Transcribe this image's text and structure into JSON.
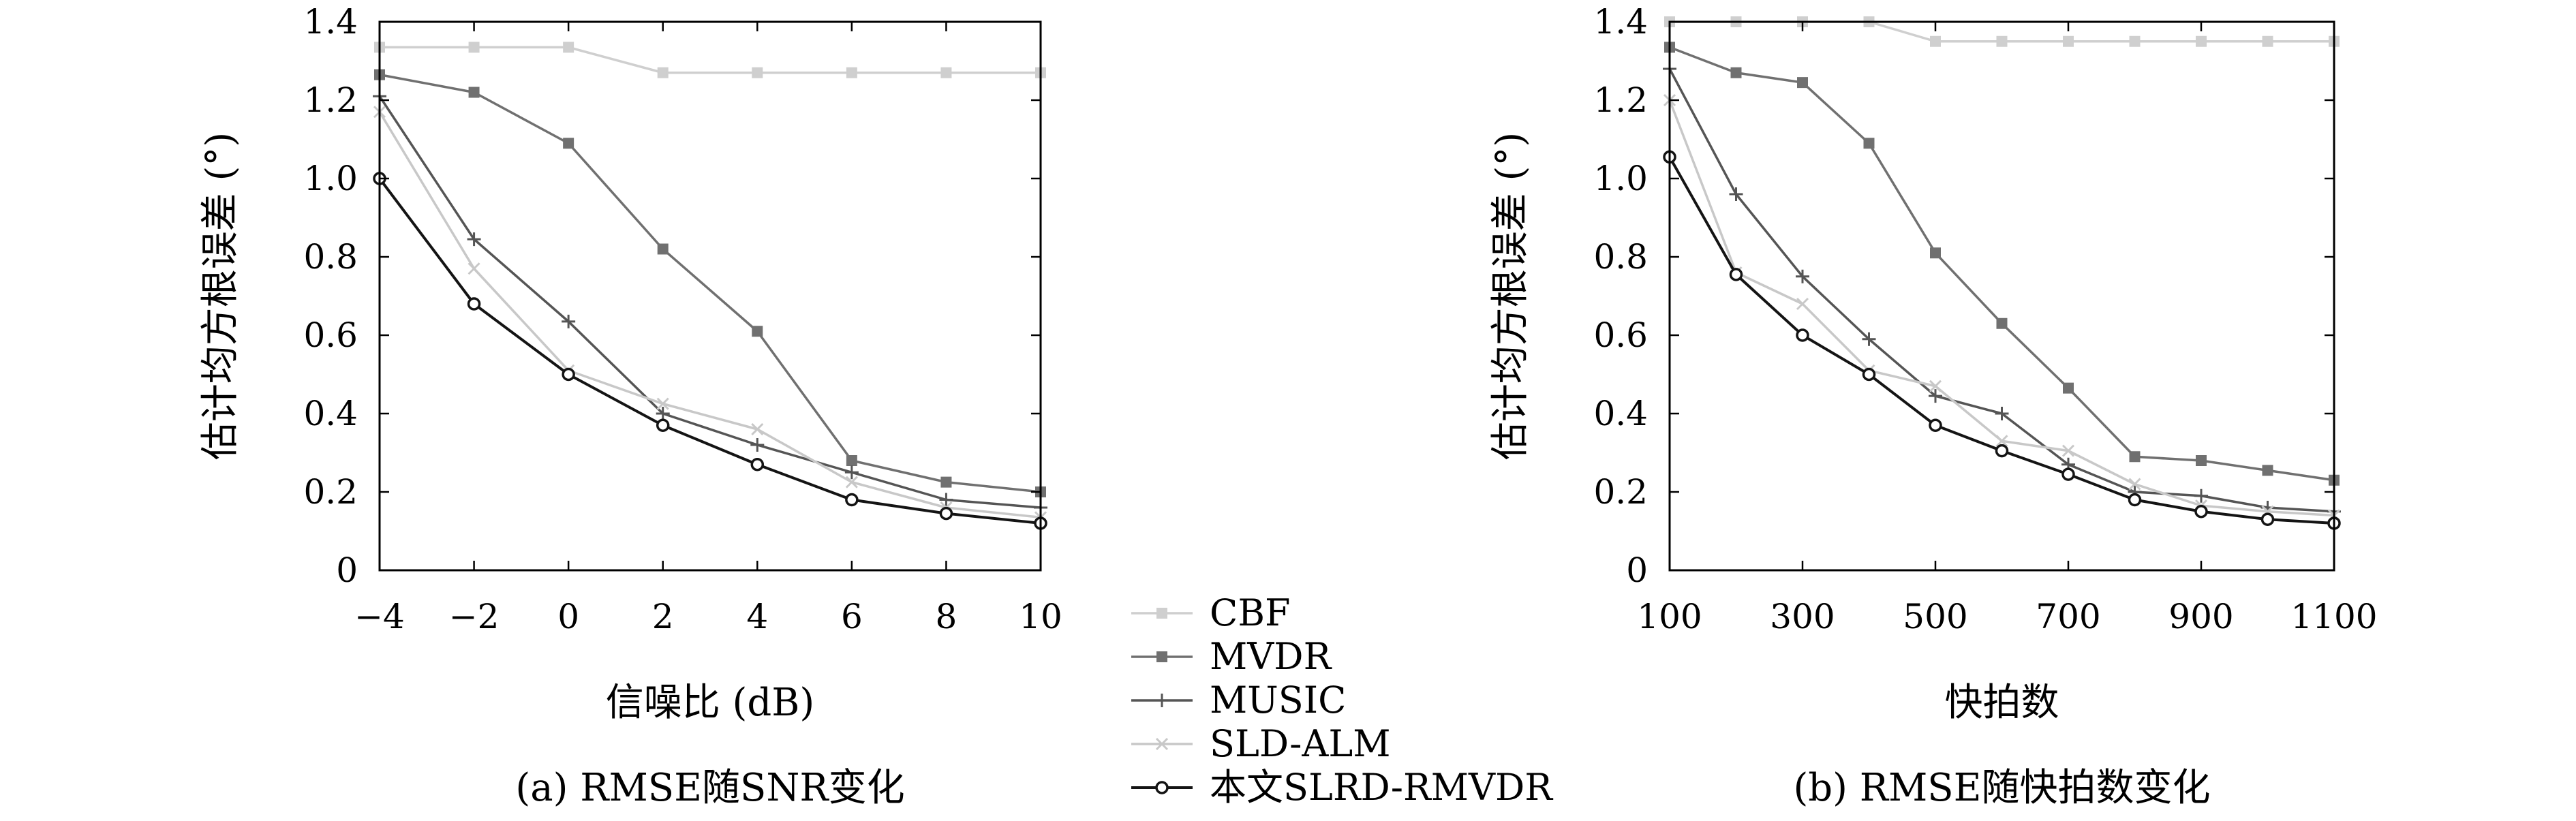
{
  "chart_data": [
    {
      "type": "line",
      "caption": "(a) RMSE随SNR变化",
      "xlabel": "信噪比 (dB)",
      "ylabel": "估计均方根误差 (°)",
      "x": [
        -4,
        -2,
        0,
        2,
        4,
        6,
        8,
        10
      ],
      "xticks": [
        "−4",
        "−2",
        "0",
        "2",
        "4",
        "6",
        "8",
        "10"
      ],
      "yticks": [
        "0",
        "0.2",
        "0.4",
        "0.6",
        "0.8",
        "1.0",
        "1.2",
        "1.4"
      ],
      "xlim": [
        -4,
        10
      ],
      "ylim": [
        0,
        1.4
      ],
      "grid": false,
      "series": [
        {
          "name": "CBF",
          "values": [
            1.335,
            1.335,
            1.335,
            1.27,
            1.27,
            1.27,
            1.27,
            1.27
          ]
        },
        {
          "name": "MVDR",
          "values": [
            1.265,
            1.22,
            1.09,
            0.82,
            0.61,
            0.28,
            0.225,
            0.2
          ]
        },
        {
          "name": "MUSIC",
          "values": [
            1.21,
            0.845,
            0.635,
            0.4,
            0.32,
            0.25,
            0.18,
            0.16
          ]
        },
        {
          "name": "SLD-ALM",
          "values": [
            1.17,
            0.77,
            0.51,
            0.425,
            0.36,
            0.225,
            0.16,
            0.135
          ]
        },
        {
          "name": "本文SLRD-RMVDR",
          "values": [
            1.0,
            0.68,
            0.5,
            0.37,
            0.27,
            0.18,
            0.145,
            0.12
          ]
        }
      ]
    },
    {
      "type": "line",
      "caption": "(b) RMSE随快拍数变化",
      "xlabel": "快拍数",
      "ylabel": "估计均方根误差 (°)",
      "x": [
        100,
        200,
        300,
        400,
        500,
        600,
        700,
        800,
        900,
        1000,
        1100
      ],
      "xticks": [
        "100",
        "300",
        "500",
        "700",
        "900",
        "1100"
      ],
      "xtick_values": [
        100,
        300,
        500,
        700,
        900,
        1100
      ],
      "yticks": [
        "0",
        "0.2",
        "0.4",
        "0.6",
        "0.8",
        "1.0",
        "1.2",
        "1.4"
      ],
      "xlim": [
        100,
        1100
      ],
      "ylim": [
        0,
        1.4
      ],
      "grid": false,
      "series": [
        {
          "name": "CBF",
          "values": [
            1.4,
            1.4,
            1.4,
            1.4,
            1.35,
            1.35,
            1.35,
            1.35,
            1.35,
            1.35,
            1.35
          ]
        },
        {
          "name": "MVDR",
          "values": [
            1.335,
            1.27,
            1.245,
            1.09,
            0.81,
            0.63,
            0.465,
            0.29,
            0.28,
            0.255,
            0.23
          ]
        },
        {
          "name": "MUSIC",
          "values": [
            1.28,
            0.96,
            0.75,
            0.59,
            0.445,
            0.4,
            0.27,
            0.2,
            0.19,
            0.16,
            0.15
          ]
        },
        {
          "name": "SLD-ALM",
          "values": [
            1.2,
            0.76,
            0.68,
            0.51,
            0.47,
            0.33,
            0.305,
            0.22,
            0.165,
            0.15,
            0.14
          ]
        },
        {
          "name": "本文SLRD-RMVDR",
          "values": [
            1.055,
            0.755,
            0.6,
            0.5,
            0.37,
            0.305,
            0.245,
            0.18,
            0.15,
            0.13,
            0.12
          ]
        }
      ]
    }
  ],
  "series_style": [
    {
      "color": "#cfcfcf",
      "marker": "square"
    },
    {
      "color": "#707070",
      "marker": "square"
    },
    {
      "color": "#555555",
      "marker": "plus"
    },
    {
      "color": "#c8c8c8",
      "marker": "cross"
    },
    {
      "color": "#141414",
      "marker": "circle"
    }
  ],
  "legend": {
    "placement": "bottom-center",
    "entries": [
      "CBF",
      "MVDR",
      "MUSIC",
      "SLD-ALM",
      "本文SLRD-RMVDR"
    ]
  }
}
